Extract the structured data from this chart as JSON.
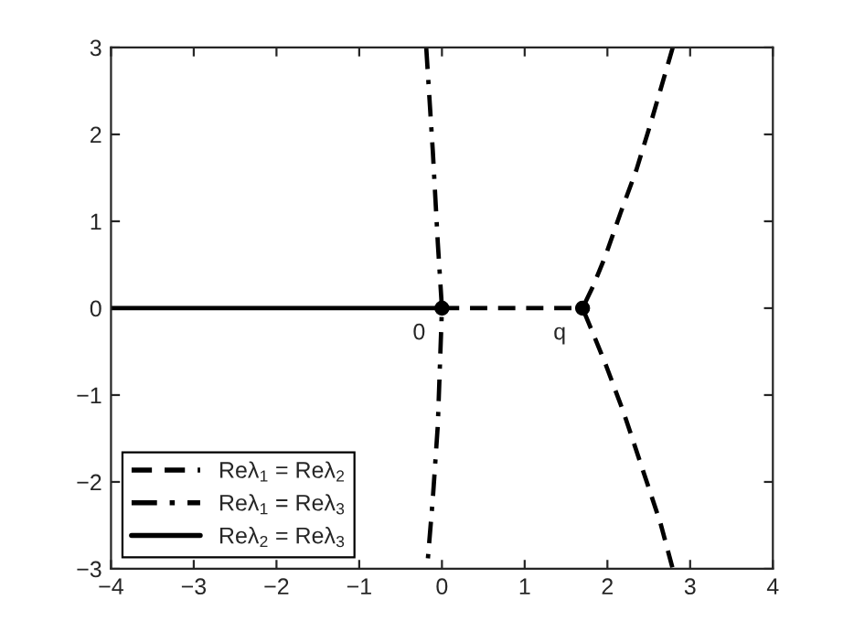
{
  "chart_data": {
    "type": "line",
    "xlim": [
      -4,
      4
    ],
    "ylim": [
      -3,
      3
    ],
    "xticks": [
      -4,
      -3,
      -2,
      -1,
      0,
      1,
      2,
      3,
      4
    ],
    "yticks": [
      -3,
      -2,
      -1,
      0,
      1,
      2,
      3
    ],
    "grid": false,
    "legend": "bottom left",
    "series": [
      {
        "name": "Reλ$_{1}$ = Reλ$_{2}$",
        "color": "#000000",
        "line_style": "dashed",
        "x": [
          2.79,
          2.68,
          2.53,
          2.35,
          2.16,
          1.98,
          1.83,
          1.7,
          1.8,
          1.98,
          2.2,
          2.42,
          2.64,
          2.79,
          null,
          0,
          1.7
        ],
        "values": [
          3,
          2.64,
          2.15,
          1.59,
          1.1,
          0.61,
          0.26,
          0,
          -0.23,
          -0.65,
          -1.21,
          -1.84,
          -2.47,
          -3,
          null,
          0,
          0
        ]
      },
      {
        "name": "Reλ$_{1}$ = Reλ$_{3}$",
        "color": "#000000",
        "line_style": "dashdot",
        "x": [
          -0.19,
          -0.11,
          -0.05,
          0,
          -0.05,
          -0.11,
          -0.18
        ],
        "values": [
          3,
          1.8,
          0.75,
          0,
          -1.35,
          -2.19,
          -3
        ]
      },
      {
        "name": "Reλ$_{2}$ = Reλ$_{3}$",
        "color": "#000000",
        "line_style": "solid",
        "x": [
          -4,
          0
        ],
        "values": [
          0,
          0
        ]
      },
      {
        "type": "scatter",
        "color": "#000000",
        "marker": "circle",
        "x": [
          0,
          1.7
        ],
        "values": [
          0,
          0
        ]
      }
    ],
    "annotations": [
      {
        "text": "0",
        "x": 0,
        "y": 0
      },
      {
        "text": "q",
        "x": 1.7,
        "y": 0
      }
    ]
  }
}
